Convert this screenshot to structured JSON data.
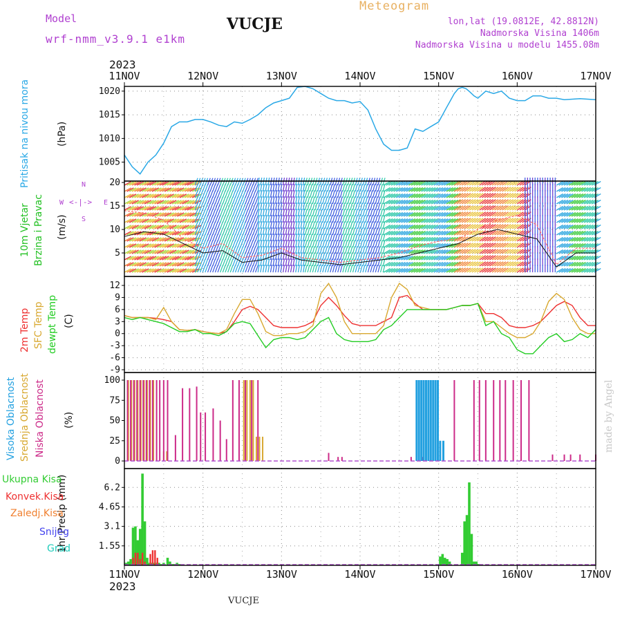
{
  "header": {
    "model_label": "Model",
    "model_name": "wrf-nmm_v3.9.1 e1km",
    "station": "VUCJE",
    "product": "Meteogram",
    "lonlat": "lon,lat (19.0812E, 42.8812N)",
    "elevation": "Nadmorska Visina 1406m",
    "elevation_model": "Nadmorska Visina u modelu 1455.08m",
    "year": "2023",
    "footer_station": "VUCJE",
    "watermark": "made by Angel"
  },
  "colors": {
    "pressure": "#29a8e6",
    "wind_title": "#22c022",
    "temp2m": "#ee3030",
    "sfc_temp": "#d8a830",
    "dewpt": "#22cc22",
    "high_cloud": "#22a0e0",
    "mid_cloud": "#d8a830",
    "low_cloud": "#cc2a88",
    "precip_total": "#33cc33",
    "precip_conv": "#ee3030",
    "header_purple": "#b040d0",
    "header_orange": "#e8b060"
  },
  "chart_data": [
    {
      "type": "line",
      "name": "pressure",
      "ylabel_lines": [
        "Pritisak na nivou mora",
        "(hPa)"
      ],
      "ylim": [
        1001,
        1021
      ],
      "yticks": [
        1005,
        1010,
        1015,
        1020
      ],
      "x_days": [
        "11NOV",
        "12NOV",
        "13NOV",
        "14NOV",
        "15NOV",
        "16NOV",
        "17NOV"
      ],
      "grid": true,
      "series": [
        {
          "x": [
            0,
            0.1,
            0.2,
            0.3,
            0.4,
            0.5,
            0.6,
            0.7,
            0.8,
            0.9,
            1.0,
            1.1,
            1.2,
            1.3,
            1.4,
            1.5,
            1.6,
            1.7,
            1.8,
            1.9,
            2.0,
            2.1,
            2.2,
            2.3,
            2.4,
            2.5,
            2.6,
            2.7,
            2.8,
            2.9,
            3.0,
            3.1,
            3.2,
            3.3,
            3.4,
            3.5,
            3.6,
            3.7,
            3.8,
            3.9,
            4.0,
            4.05,
            4.1,
            4.15,
            4.2,
            4.25,
            4.3,
            4.35,
            4.4,
            4.45,
            4.5,
            4.6,
            4.7,
            4.8,
            4.9,
            5.0,
            5.1,
            5.2,
            5.3,
            5.4,
            5.5,
            5.6,
            5.7,
            5.8,
            5.9,
            6.0
          ],
          "values": [
            1006.5,
            1004,
            1002.5,
            1005,
            1006.5,
            1009,
            1012.5,
            1013.5,
            1013.5,
            1014,
            1014,
            1013.5,
            1012.8,
            1012.5,
            1013.5,
            1013.2,
            1014,
            1015,
            1016.5,
            1017.5,
            1018,
            1018.5,
            1020.8,
            1021,
            1020.5,
            1019.5,
            1018.5,
            1018,
            1018,
            1017.5,
            1017.8,
            1016,
            1012,
            1008.8,
            1007.5,
            1007.5,
            1008,
            1012,
            1011.5,
            1012.5,
            1013.5,
            1015,
            1016.5,
            1018,
            1019.5,
            1020.5,
            1020.8,
            1020.5,
            1019.8,
            1019,
            1018.5,
            1020,
            1019.5,
            1020,
            1018.5,
            1018,
            1018,
            1019,
            1019,
            1018.5,
            1018.5,
            1018.2,
            1018.3,
            1018.4,
            1018.3,
            1018.2
          ]
        }
      ]
    },
    {
      "type": "line",
      "name": "wind",
      "ylabel_lines": [
        "10m Vjetar",
        "Brzina i Pravac",
        "(m/s)"
      ],
      "ylim": [
        0,
        20
      ],
      "yticks": [
        5,
        10,
        15,
        20
      ],
      "x_days": [
        "11NOV",
        "12NOV",
        "13NOV",
        "14NOV",
        "15NOV",
        "16NOV",
        "17NOV"
      ],
      "compass": [
        "N",
        "E",
        "S",
        "W"
      ],
      "grid": true,
      "series": [
        {
          "name": "speed",
          "x": [
            0,
            0.25,
            0.5,
            0.75,
            1.0,
            1.25,
            1.5,
            1.75,
            2.0,
            2.25,
            2.5,
            2.75,
            3.0,
            3.25,
            3.5,
            3.75,
            4.0,
            4.25,
            4.5,
            4.75,
            5.0,
            5.25,
            5.5,
            5.75,
            6.0
          ],
          "values": [
            8.5,
            9.5,
            9,
            7,
            5,
            5.5,
            3,
            3.5,
            5,
            3.5,
            3,
            2.5,
            3,
            3.5,
            4,
            5,
            6,
            7,
            9,
            10,
            9,
            8,
            2,
            5,
            5
          ]
        },
        {
          "name": "gust",
          "x": [
            0,
            0.25,
            0.5,
            0.75,
            1.0,
            1.25,
            1.5,
            1.75,
            2.0,
            2.25,
            2.5,
            2.75,
            3.0,
            3.25,
            3.5,
            3.75,
            4.0,
            4.25,
            4.5,
            4.75,
            5.0,
            5.25,
            5.5,
            5.75,
            6.0
          ],
          "values": [
            14,
            13.5,
            12,
            8,
            6,
            7,
            4,
            4.5,
            6,
            4,
            3.5,
            3,
            3.5,
            4,
            5,
            6.5,
            7.5,
            8,
            10,
            12,
            13,
            11,
            2.5,
            6,
            6
          ]
        }
      ]
    },
    {
      "type": "line",
      "name": "temperature",
      "ylabel_lines": [
        "2m Temp",
        "SFC Temp",
        "dewpt Temp",
        "(C)"
      ],
      "ylim": [
        -9,
        13
      ],
      "yticks": [
        -9,
        -6,
        -3,
        0,
        3,
        6,
        9,
        12
      ],
      "x_days": [
        "11NOV",
        "12NOV",
        "13NOV",
        "14NOV",
        "15NOV",
        "16NOV",
        "17NOV"
      ],
      "grid": true,
      "series": [
        {
          "name": "2m Temp",
          "x": [
            0,
            0.1,
            0.2,
            0.3,
            0.4,
            0.5,
            0.6,
            0.7,
            0.8,
            0.9,
            1.0,
            1.1,
            1.2,
            1.3,
            1.4,
            1.5,
            1.6,
            1.7,
            1.8,
            1.9,
            2.0,
            2.1,
            2.2,
            2.3,
            2.4,
            2.5,
            2.6,
            2.7,
            2.8,
            2.9,
            3.0,
            3.1,
            3.2,
            3.3,
            3.4,
            3.5,
            3.6,
            3.7,
            3.8,
            3.9,
            4.0,
            4.1,
            4.2,
            4.3,
            4.4,
            4.5,
            4.6,
            4.7,
            4.8,
            4.9,
            5.0,
            5.1,
            5.2,
            5.3,
            5.4,
            5.5,
            5.6,
            5.7,
            5.8,
            5.9,
            6.0
          ],
          "values": [
            4.5,
            4,
            4,
            4,
            3.8,
            3.5,
            3,
            1,
            0.8,
            1,
            0.5,
            0.2,
            0,
            0.5,
            3,
            6,
            6.8,
            6,
            4,
            2,
            1.5,
            1.5,
            1.5,
            2,
            3,
            7,
            9,
            7,
            4.5,
            2.5,
            2,
            2,
            2,
            3,
            4,
            9,
            9.5,
            7.5,
            6,
            6,
            6,
            6,
            6.5,
            7,
            7,
            7.5,
            5,
            5,
            4,
            2,
            1.5,
            1.5,
            2,
            3,
            5,
            7,
            8,
            7,
            4,
            2,
            2
          ]
        },
        {
          "name": "SFC Temp",
          "x": [
            0,
            0.1,
            0.2,
            0.3,
            0.4,
            0.5,
            0.6,
            0.7,
            0.8,
            0.9,
            1.0,
            1.1,
            1.2,
            1.3,
            1.4,
            1.5,
            1.6,
            1.7,
            1.8,
            1.9,
            2.0,
            2.1,
            2.2,
            2.3,
            2.4,
            2.5,
            2.6,
            2.7,
            2.8,
            2.9,
            3.0,
            3.1,
            3.2,
            3.3,
            3.4,
            3.5,
            3.6,
            3.7,
            3.8,
            3.9,
            4.0,
            4.1,
            4.2,
            4.3,
            4.4,
            4.5,
            4.6,
            4.7,
            4.8,
            4.9,
            5.0,
            5.1,
            5.2,
            5.3,
            5.4,
            5.5,
            5.6,
            5.7,
            5.8,
            5.9,
            6.0
          ],
          "values": [
            4.5,
            4,
            4,
            4,
            3.5,
            6.5,
            3,
            1,
            0.8,
            1,
            0.5,
            0.2,
            0,
            1,
            5,
            8.5,
            8.5,
            5,
            0.5,
            -0.5,
            -0.5,
            0,
            0,
            0.5,
            2,
            10,
            12.5,
            9,
            3,
            0,
            0,
            0,
            0,
            2,
            9,
            12.5,
            11,
            7,
            6.5,
            6,
            6,
            6,
            6.5,
            7,
            7,
            7.5,
            3,
            3,
            1.5,
            0,
            -1,
            -1,
            0,
            3,
            8,
            10,
            8.5,
            4,
            1,
            0,
            0
          ]
        },
        {
          "name": "dewpt Temp",
          "x": [
            0,
            0.1,
            0.2,
            0.3,
            0.4,
            0.5,
            0.6,
            0.7,
            0.8,
            0.9,
            1.0,
            1.1,
            1.2,
            1.3,
            1.4,
            1.5,
            1.6,
            1.7,
            1.8,
            1.9,
            2.0,
            2.1,
            2.2,
            2.3,
            2.4,
            2.5,
            2.6,
            2.7,
            2.8,
            2.9,
            3.0,
            3.1,
            3.2,
            3.3,
            3.4,
            3.5,
            3.6,
            3.7,
            3.8,
            3.9,
            4.0,
            4.1,
            4.2,
            4.3,
            4.4,
            4.5,
            4.6,
            4.7,
            4.8,
            4.9,
            5.0,
            5.1,
            5.2,
            5.3,
            5.4,
            5.5,
            5.6,
            5.7,
            5.8,
            5.9,
            6.0
          ],
          "values": [
            4,
            3.5,
            4,
            3.5,
            3,
            2.5,
            1.5,
            0.5,
            0.5,
            1,
            0,
            0,
            -0.5,
            0.5,
            2.5,
            3,
            2.5,
            -0.5,
            -3.5,
            -1.5,
            -1,
            -1,
            -1.5,
            -1,
            1,
            3,
            4,
            0,
            -1.5,
            -2,
            -2,
            -2,
            -1.5,
            1,
            2,
            4,
            6,
            6,
            6,
            6,
            6,
            6,
            6.5,
            7,
            7,
            7.5,
            2,
            3,
            0,
            -1,
            -4,
            -5,
            -5,
            -3,
            -1,
            0,
            -2,
            -1.5,
            0,
            -1,
            1
          ]
        }
      ]
    },
    {
      "type": "bar",
      "name": "cloud",
      "ylabel_lines": [
        "Visoka Oblacnost",
        "Srednja Oblacnost",
        "Niska Oblacnost",
        "(%)"
      ],
      "ylim": [
        0,
        100
      ],
      "yticks": [
        0,
        25,
        50,
        75,
        100
      ],
      "x_days": [
        "11NOV",
        "12NOV",
        "13NOV",
        "14NOV",
        "15NOV",
        "16NOV",
        "17NOV"
      ],
      "series": [
        {
          "name": "Srednja Oblacnost",
          "x": [
            0.05,
            0.09,
            0.13,
            0.17,
            0.21,
            0.25,
            0.29,
            0.33,
            0.37,
            0.5,
            0.54,
            1.52,
            1.56,
            1.6,
            1.64,
            1.68,
            1.72,
            1.76
          ],
          "values": [
            100,
            100,
            100,
            100,
            100,
            100,
            100,
            100,
            100,
            12,
            12,
            100,
            100,
            100,
            100,
            30,
            30,
            30
          ]
        },
        {
          "name": "Niska Oblacnost",
          "x": [
            0.04,
            0.08,
            0.12,
            0.16,
            0.2,
            0.24,
            0.28,
            0.32,
            0.36,
            0.41,
            0.45,
            0.5,
            0.55,
            0.65,
            0.74,
            0.83,
            0.92,
            0.97,
            1.03,
            1.13,
            1.22,
            1.3,
            1.38,
            1.46,
            1.54,
            1.62,
            1.7,
            2.6,
            2.72,
            2.77,
            3.65,
            3.72,
            3.8,
            4.2,
            4.45,
            4.52,
            4.6,
            4.7,
            4.78,
            4.85,
            4.95,
            5.05,
            5.15,
            5.45,
            5.6,
            5.68,
            5.8,
            6.0
          ],
          "values": [
            100,
            100,
            100,
            100,
            100,
            100,
            100,
            100,
            100,
            100,
            100,
            100,
            100,
            32,
            90,
            90,
            92,
            60,
            60,
            65,
            50,
            27,
            100,
            100,
            100,
            100,
            100,
            10,
            5,
            5,
            5,
            5,
            5,
            100,
            100,
            100,
            100,
            100,
            100,
            100,
            100,
            100,
            100,
            8,
            8,
            8,
            8,
            8
          ]
        },
        {
          "name": "Visoka Oblacnost",
          "x": [
            3.72,
            3.75,
            3.78,
            3.81,
            3.84,
            3.87,
            3.9,
            3.93,
            3.96,
            3.99,
            4.02,
            4.06
          ],
          "values": [
            100,
            100,
            100,
            100,
            100,
            100,
            100,
            100,
            100,
            100,
            25,
            25
          ]
        }
      ]
    },
    {
      "type": "bar",
      "name": "precip",
      "ylabel_lines": [
        "1hr Precip (mm)"
      ],
      "legend": [
        "Ukupna Kisa",
        "Konvek.Kisa",
        "Zaledj.Kisa",
        "Snijeg",
        "Grad"
      ],
      "ylim": [
        0,
        7.7
      ],
      "yticks": [
        1.55,
        3.1,
        4.65,
        6.2
      ],
      "x_days": [
        "11NOV",
        "12NOV",
        "13NOV",
        "14NOV",
        "15NOV",
        "16NOV",
        "17NOV"
      ],
      "grid": true,
      "series": [
        {
          "name": "Ukupna Kisa",
          "x": [
            0.02,
            0.05,
            0.08,
            0.11,
            0.14,
            0.17,
            0.2,
            0.23,
            0.26,
            0.29,
            0.32,
            0.35,
            0.38,
            0.41,
            0.44,
            0.47,
            0.5,
            0.55,
            0.58,
            0.61,
            0.64,
            0.67,
            0.7,
            4.02,
            4.05,
            4.08,
            4.11,
            4.14,
            4.3,
            4.33,
            4.36,
            4.39,
            4.42,
            4.45,
            4.48,
            4.51
          ],
          "values": [
            0.2,
            0.3,
            0.5,
            3.0,
            3.1,
            2.0,
            2.9,
            7.3,
            3.5,
            0.6,
            0.2,
            0.2,
            0.2,
            0.2,
            0.2,
            0.1,
            0.2,
            0.6,
            0.3,
            0.1,
            0.1,
            0.2,
            0.1,
            0.7,
            0.9,
            0.6,
            0.5,
            0.3,
            1.0,
            3.5,
            4.0,
            6.6,
            2.5,
            0.3,
            0.3,
            0.1
          ]
        },
        {
          "name": "Konvek.Kisa",
          "x": [
            0.11,
            0.14,
            0.17,
            0.2,
            0.23,
            0.26,
            0.33,
            0.36,
            0.39,
            0.42
          ],
          "values": [
            0.6,
            1.0,
            1.0,
            0.5,
            1.0,
            0.3,
            0.9,
            1.2,
            1.2,
            0.6
          ]
        }
      ]
    }
  ]
}
